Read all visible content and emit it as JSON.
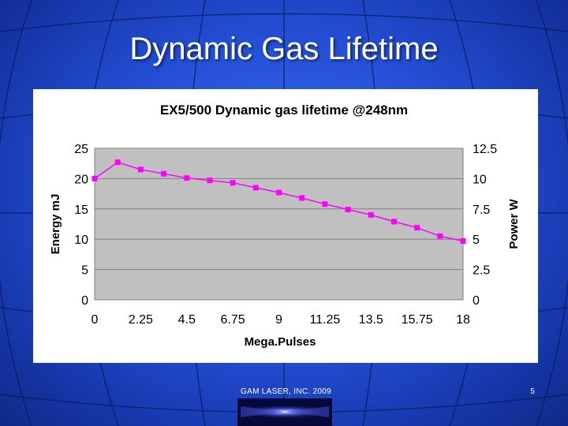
{
  "slide": {
    "title": "Dynamic Gas Lifetime",
    "footer": "GAM LASER, INC. 2009",
    "page_number": "5"
  },
  "colors": {
    "plot_background": "#c0c0c0",
    "series": "#ff00ff",
    "gridline": "#808080"
  },
  "chart_data": {
    "type": "line",
    "title": "EX5/500 Dynamic gas lifetime @248nm",
    "xlabel": "Mega.Pulses",
    "ylabel": "Energy mJ",
    "y2label": "Power W",
    "x_ticks": [
      "0",
      "2.25",
      "4.5",
      "6.75",
      "9",
      "11.25",
      "13.5",
      "15.75",
      "18"
    ],
    "y_ticks": [
      "0",
      "5",
      "10",
      "15",
      "20",
      "25"
    ],
    "y2_ticks": [
      "0",
      "2.5",
      "5",
      "7.5",
      "10",
      "12.5"
    ],
    "xlim": [
      0,
      18
    ],
    "ylim": [
      0,
      25
    ],
    "y2lim": [
      0,
      12.5
    ],
    "grid": true,
    "series": [
      {
        "marker": "square",
        "x": [
          0,
          1.125,
          2.25,
          3.375,
          4.5,
          5.625,
          6.75,
          7.875,
          9,
          10.125,
          11.25,
          12.375,
          13.5,
          14.625,
          15.75,
          16.875,
          18
        ],
        "y": [
          20.0,
          22.7,
          21.5,
          20.8,
          20.1,
          19.7,
          19.3,
          18.5,
          17.7,
          16.8,
          15.8,
          14.9,
          14.0,
          12.9,
          11.9,
          10.5,
          9.7
        ]
      }
    ]
  }
}
